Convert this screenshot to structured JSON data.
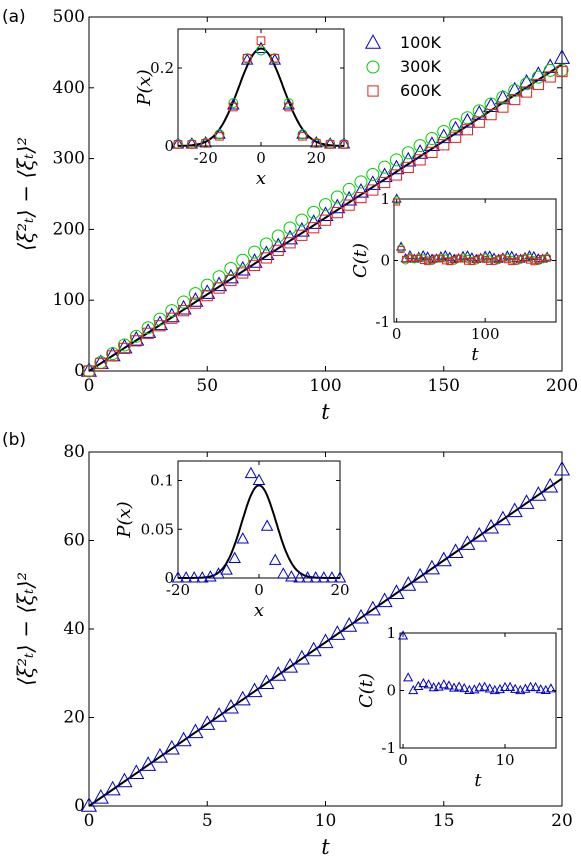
{
  "chart_data": [
    {
      "id": "a_main",
      "panel_label": "(a)",
      "type": "scatter",
      "xlabel": "t",
      "ylabel": "⟨ξ²ₜ⟩ − ⟨ξₜ⟩²",
      "xlim": [
        0,
        200
      ],
      "ylim": [
        0,
        500
      ],
      "xticks": [
        0,
        50,
        100,
        150,
        200
      ],
      "yticks": [
        0,
        100,
        200,
        300,
        400,
        500
      ],
      "fit_line": {
        "x": [
          0,
          200
        ],
        "y": [
          0,
          433
        ],
        "color": "#000000"
      },
      "series": [
        {
          "name": "100K",
          "marker": "triangle",
          "color": "#0000cc",
          "x_start": 0,
          "x_step": 5,
          "slope": 2.2,
          "y_end": 442
        },
        {
          "name": "300K",
          "marker": "circle",
          "color": "#00cc00",
          "x_start": 0,
          "x_step": 5,
          "slope": 2.17,
          "bump": true,
          "y_end": 425
        },
        {
          "name": "600K",
          "marker": "square",
          "color": "#e02020",
          "x_start": 0,
          "x_step": 5,
          "slope": 2.13,
          "y_end": 423
        }
      ]
    },
    {
      "id": "a_inset_px",
      "type": "scatter",
      "xlabel": "x",
      "ylabel": "P(x)",
      "xlim": [
        -30,
        30
      ],
      "ylim": [
        0,
        0.3
      ],
      "xticks": [
        -20,
        0,
        20
      ],
      "yticks": [
        0,
        0.2
      ],
      "ytick_labels": [
        "0",
        "0.2"
      ],
      "fit_curve": {
        "type": "gaussian",
        "mu": 0,
        "sigma": 8,
        "amplitude": 0.25
      },
      "points_x": [
        -30,
        -25,
        -20,
        -15,
        -10,
        -5,
        0,
        5,
        10,
        15,
        20,
        25,
        30
      ],
      "series": [
        {
          "name": "100K",
          "y": [
            0.005,
            0.005,
            0.008,
            0.03,
            0.105,
            0.22,
            0.25,
            0.22,
            0.105,
            0.03,
            0.008,
            0.005,
            0.005
          ]
        },
        {
          "name": "300K",
          "y": [
            0.005,
            0.005,
            0.008,
            0.03,
            0.11,
            0.225,
            0.245,
            0.225,
            0.11,
            0.03,
            0.008,
            0.005,
            0.005
          ]
        },
        {
          "name": "600K",
          "y": [
            0.004,
            0.004,
            0.007,
            0.025,
            0.1,
            0.225,
            0.27,
            0.225,
            0.1,
            0.025,
            0.007,
            0.004,
            0.004
          ]
        }
      ]
    },
    {
      "id": "a_inset_ct",
      "type": "scatter",
      "xlabel": "t",
      "ylabel": "C(t)",
      "xlim": [
        -3,
        180
      ],
      "ylim": [
        -1,
        1
      ],
      "xticks": [
        0,
        100
      ],
      "yticks": [
        -1,
        0,
        1
      ],
      "points_x_start": 0,
      "points_x_step": 5,
      "points_count": 35,
      "series": [
        {
          "name": "100K",
          "first": [
            1.0,
            0.22,
            0.03,
            0.08
          ],
          "rest": 0.05
        },
        {
          "name": "300K",
          "first": [
            0.98,
            0.2,
            0.0,
            0.05
          ],
          "rest": 0.02
        },
        {
          "name": "600K",
          "first": [
            0.95,
            0.18,
            0.02,
            0.04
          ],
          "rest": 0.01
        }
      ]
    },
    {
      "id": "b_main",
      "panel_label": "(b)",
      "type": "scatter",
      "xlabel": "t",
      "ylabel": "⟨ξ²ₜ⟩ − ⟨ξₜ⟩²",
      "xlim": [
        0,
        20
      ],
      "ylim": [
        0,
        80
      ],
      "xticks": [
        0,
        5,
        10,
        15,
        20
      ],
      "yticks": [
        0,
        20,
        40,
        60,
        80
      ],
      "fit_line": {
        "x": [
          0,
          20
        ],
        "y": [
          0,
          74
        ],
        "color": "#000000"
      },
      "series": [
        {
          "name": "",
          "marker": "triangle",
          "color": "#0000cc",
          "x_start": 0,
          "x_step": 0.5,
          "slope": 3.7,
          "y_end": 76
        }
      ]
    },
    {
      "id": "b_inset_px",
      "type": "scatter",
      "xlabel": "x",
      "ylabel": "P(x)",
      "xlim": [
        -20,
        20
      ],
      "ylim": [
        0,
        0.12
      ],
      "xticks": [
        -20,
        0,
        20
      ],
      "yticks": [
        0,
        0.05,
        0.1
      ],
      "ytick_labels": [
        "0",
        "0.05",
        "0.1"
      ],
      "fit_curve": {
        "type": "gaussian",
        "mu": 0,
        "sigma": 4.2,
        "amplitude": 0.095
      },
      "points_x": [
        -20,
        -18,
        -16,
        -14,
        -12,
        -10,
        -8,
        -6,
        -4,
        -2,
        0,
        2,
        4,
        6,
        8,
        10,
        12,
        14,
        16,
        18,
        20
      ],
      "series": [
        {
          "name": "",
          "y": [
            0.0,
            0.0,
            0.0,
            0.0,
            0.001,
            0.004,
            0.008,
            0.02,
            0.04,
            0.107,
            0.1,
            0.053,
            0.018,
            0.004,
            0.001,
            0.0,
            0.0,
            0.0,
            0.0,
            0.0,
            0.0
          ]
        }
      ]
    },
    {
      "id": "b_inset_ct",
      "type": "scatter",
      "xlabel": "t",
      "ylabel": "C(t)",
      "xlim": [
        -0.3,
        15
      ],
      "ylim": [
        -1,
        1
      ],
      "xticks": [
        0,
        10
      ],
      "yticks": [
        -1,
        0,
        1
      ],
      "points_x_start": 0,
      "points_x_step": 0.5,
      "points_count": 30,
      "series": [
        {
          "name": "",
          "first": [
            0.95,
            0.22,
            0.0,
            0.07,
            0.12,
            0.1,
            0.05,
            0.06,
            0.1,
            0.08
          ],
          "rest": 0.03
        }
      ]
    }
  ],
  "legend": {
    "placement": "top-right",
    "entries": [
      "100K",
      "300K",
      "600K"
    ]
  }
}
